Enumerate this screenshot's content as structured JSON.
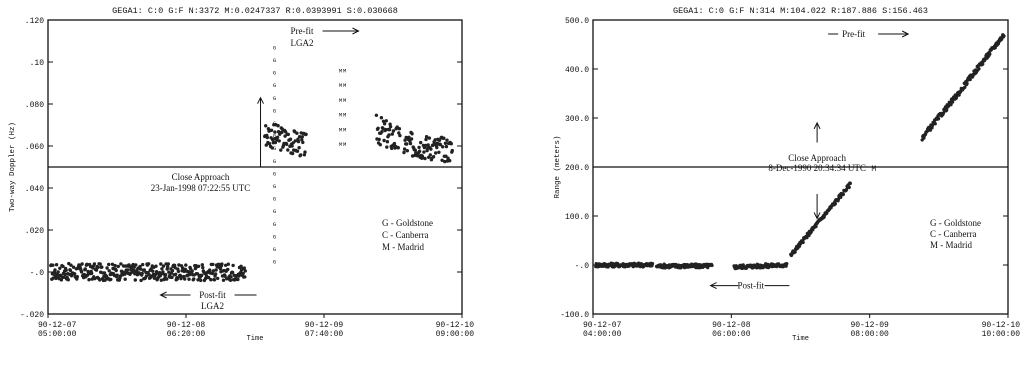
{
  "chart_data": [
    {
      "type": "scatter",
      "header": "GEGA1: C:0 G:F N:3372 M:0.0247337 R:0.0393991 S:0.030668",
      "ylabel": "Two-way Doppler (Hz)",
      "xlabel": "Time",
      "ylim": [
        -0.02,
        0.12
      ],
      "yticks": [
        ".120",
        ".10",
        ".080",
        ".060",
        ".040",
        ".020",
        "-.0",
        "-.020"
      ],
      "xticks": [
        {
          "date": "90-12-07",
          "time": "05:00:00",
          "t": 0
        },
        {
          "date": "90-12-08",
          "time": "06:20:00",
          "t": 1
        },
        {
          "date": "90-12-09",
          "time": "07:40:00",
          "t": 2
        },
        {
          "date": "90-12-10",
          "time": "09:00:00",
          "t": 3
        }
      ],
      "approach_t": 1.54,
      "annotations": {
        "prefit": "Pre-fit",
        "prefit_sub": "LGA2",
        "close_title": "Close Approach",
        "close_time": "23-Jan-1998 07:22:55 UTC",
        "postfit": "Post-fit",
        "postfit_sub": "LGA2"
      },
      "legend": [
        "G - Goldstone",
        "C - Canberra",
        "M - Madrid"
      ],
      "series": [
        {
          "name": "post-fit",
          "segments": [
            {
              "t0": 0.02,
              "t1": 1.43,
              "y0": 0.0,
              "y1": 0.0,
              "spread": 0.004
            }
          ]
        },
        {
          "name": "pre-fit",
          "segments": [
            {
              "t0": 1.57,
              "t1": 1.87,
              "y0": 0.066,
              "y1": 0.06,
              "spread": 0.006
            },
            {
              "t0": 2.38,
              "t1": 2.55,
              "y0": 0.068,
              "y1": 0.062,
              "spread": 0.007
            },
            {
              "t0": 2.58,
              "t1": 2.93,
              "y0": 0.061,
              "y1": 0.058,
              "spread": 0.006
            }
          ]
        }
      ]
    },
    {
      "type": "scatter",
      "header": "GEGA1: C:0 G:F N:314 M:104.022 R:187.886 S:156.463",
      "ylabel": "Range (meters)",
      "xlabel": "Time",
      "ylim": [
        -100,
        500
      ],
      "yticks": [
        "500.0",
        "400.0",
        "300.0",
        "200.0",
        "100.0",
        "-.0",
        "-100.0"
      ],
      "xticks": [
        {
          "date": "90-12-07",
          "time": "04:00:00",
          "t": 0
        },
        {
          "date": "90-12-08",
          "time": "06:00:00",
          "t": 1
        },
        {
          "date": "90-12-09",
          "time": "08:00:00",
          "t": 2
        },
        {
          "date": "90-12-10",
          "time": "10:00:00",
          "t": 3
        }
      ],
      "approach_t": 1.42,
      "annotations": {
        "prefit": "Pre-fit",
        "close_title": "Close Approach",
        "close_time": "8-Dec-1990 20:34:34 UTC",
        "postfit": "Post-fit",
        "marker": "M"
      },
      "legend": [
        "G - Goldstone",
        "C - Canberra",
        "M - Madrid"
      ],
      "series": [
        {
          "name": "post-fit",
          "segments": [
            {
              "t0": 0.02,
              "t1": 0.43,
              "y0": 0,
              "y1": 0,
              "spread": 4
            },
            {
              "t0": 0.46,
              "t1": 0.86,
              "y0": -2,
              "y1": -2,
              "spread": 4
            },
            {
              "t0": 1.02,
              "t1": 1.4,
              "y0": -4,
              "y1": 0,
              "spread": 4
            }
          ]
        },
        {
          "name": "pre-fit",
          "segments": [
            {
              "t0": 1.43,
              "t1": 1.86,
              "y0": 20,
              "y1": 165,
              "spread": 4
            },
            {
              "t0": 2.38,
              "t1": 2.67,
              "y0": 260,
              "y1": 360,
              "spread": 5
            },
            {
              "t0": 2.68,
              "t1": 2.97,
              "y0": 365,
              "y1": 470,
              "spread": 5
            }
          ]
        }
      ]
    }
  ]
}
